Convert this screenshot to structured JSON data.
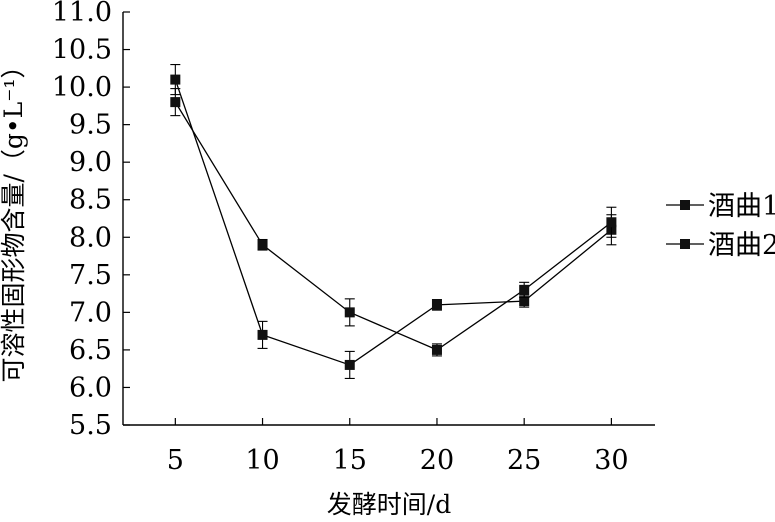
{
  "chart_data": {
    "type": "line",
    "title": "",
    "xlabel": "发酵时间/d",
    "ylabel": "可溶性固形物含量/（g•L⁻¹）",
    "x": [
      5,
      10,
      15,
      20,
      25,
      30
    ],
    "x_ticks": [
      "5",
      "10",
      "15",
      "20",
      "25",
      "30"
    ],
    "y_ticks": [
      "5.5",
      "6.0",
      "6.5",
      "7.0",
      "7.5",
      "8.0",
      "8.5",
      "9.0",
      "9.5",
      "10.0",
      "10.5",
      "11.0"
    ],
    "ylim": [
      5.5,
      11.0
    ],
    "xlim": [
      2,
      32.5
    ],
    "grid": false,
    "legend_position": "right",
    "series": [
      {
        "name": "酒曲1",
        "values": [
          10.1,
          6.7,
          6.3,
          7.1,
          7.15,
          8.1
        ],
        "errors": [
          0.2,
          0.18,
          0.18,
          0.07,
          0.08,
          0.2
        ]
      },
      {
        "name": "酒曲2",
        "values": [
          9.8,
          7.9,
          7.0,
          6.5,
          7.3,
          8.2
        ],
        "errors": [
          0.18,
          0.07,
          0.18,
          0.08,
          0.1,
          0.2
        ]
      }
    ]
  }
}
